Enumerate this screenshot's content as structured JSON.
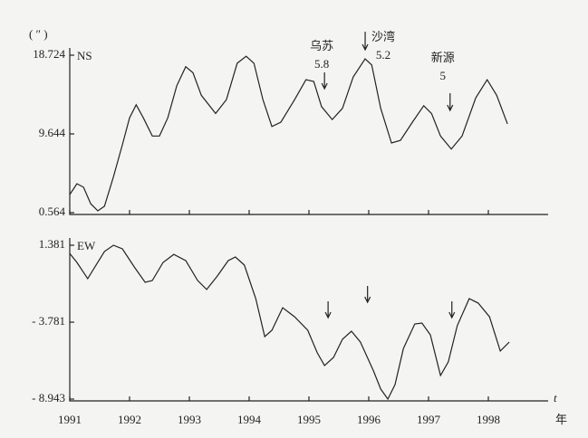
{
  "chart_data": [
    {
      "type": "line",
      "title": "NS",
      "y_unit": "( ″ )",
      "xlim": [
        1991,
        1999
      ],
      "xticks": [
        1991,
        1992,
        1993,
        1994,
        1995,
        1996,
        1997,
        1998
      ],
      "show_xtick_labels": false,
      "ylim": [
        0.564,
        18.724
      ],
      "yticks": [
        0.564,
        9.644,
        18.724
      ],
      "series": [
        {
          "name": "NS",
          "color": "#222222",
          "x": [
            1991.0,
            1991.12,
            1991.23,
            1991.35,
            1991.47,
            1991.58,
            1991.73,
            1991.88,
            1992.0,
            1992.11,
            1992.23,
            1992.38,
            1992.5,
            1992.64,
            1992.79,
            1992.94,
            1993.06,
            1993.2,
            1993.44,
            1993.62,
            1993.8,
            1993.95,
            1994.08,
            1994.23,
            1994.38,
            1994.53,
            1994.76,
            1994.95,
            1995.08,
            1995.21,
            1995.39,
            1995.56,
            1995.74,
            1995.94,
            1996.05,
            1996.2,
            1996.38,
            1996.53,
            1996.73,
            1996.92,
            1997.05,
            1997.2,
            1997.38,
            1997.56,
            1997.79,
            1997.98,
            1998.14,
            1998.32
          ],
          "values": [
            2.65,
            3.9,
            3.5,
            1.6,
            0.77,
            1.3,
            4.7,
            8.4,
            11.5,
            13.0,
            11.5,
            9.4,
            9.4,
            11.5,
            15.2,
            17.4,
            16.7,
            14.1,
            12.0,
            13.6,
            17.8,
            18.6,
            17.8,
            13.6,
            10.5,
            11.0,
            13.6,
            15.9,
            15.7,
            12.8,
            11.3,
            12.6,
            16.2,
            18.3,
            17.6,
            12.6,
            8.6,
            8.9,
            11.0,
            12.9,
            12.0,
            9.4,
            7.9,
            9.4,
            13.8,
            15.9,
            14.1,
            10.8
          ]
        }
      ],
      "annotations": [
        {
          "label": "乌苏",
          "magnitude": 5.8,
          "x": 1995.26
        },
        {
          "label": "沙湾",
          "magnitude": 5.2,
          "x": 1995.94
        },
        {
          "label": "新源",
          "magnitude": 5.0,
          "x": 1997.36
        }
      ]
    },
    {
      "type": "line",
      "title": "EW",
      "xlabel": "年",
      "x_symbol": "t",
      "xlim": [
        1991,
        1999
      ],
      "xticks": [
        1991,
        1992,
        1993,
        1994,
        1995,
        1996,
        1997,
        1998
      ],
      "show_xtick_labels": true,
      "ylim": [
        -8.943,
        1.381
      ],
      "yticks": [
        {
          "value": -8.943,
          "label": "- 8.943"
        },
        {
          "value": -3.781,
          "label": "- 3.781"
        },
        1.381
      ],
      "series": [
        {
          "name": "EW",
          "color": "#222222",
          "x": [
            1991.0,
            1991.12,
            1991.3,
            1991.42,
            1991.58,
            1991.73,
            1991.88,
            1992.08,
            1992.26,
            1992.38,
            1992.56,
            1992.74,
            1992.94,
            1993.14,
            1993.29,
            1993.47,
            1993.65,
            1993.77,
            1993.92,
            1994.11,
            1994.26,
            1994.38,
            1994.56,
            1994.76,
            1994.98,
            1995.14,
            1995.26,
            1995.41,
            1995.56,
            1995.71,
            1995.86,
            1996.08,
            1996.2,
            1996.32,
            1996.44,
            1996.58,
            1996.77,
            1996.89,
            1997.03,
            1997.2,
            1997.33,
            1997.48,
            1997.68,
            1997.83,
            1998.02,
            1998.2,
            1998.35
          ],
          "values": [
            0.83,
            0.23,
            -0.86,
            -0.08,
            0.96,
            1.38,
            1.14,
            -0.08,
            -1.11,
            -0.99,
            0.23,
            0.77,
            0.35,
            -0.99,
            -1.59,
            -0.68,
            0.35,
            0.59,
            0.05,
            -2.2,
            -4.75,
            -4.33,
            -2.81,
            -3.42,
            -4.33,
            -5.84,
            -6.69,
            -6.15,
            -4.93,
            -4.39,
            -5.12,
            -7.06,
            -8.27,
            -8.94,
            -7.97,
            -5.54,
            -3.9,
            -3.84,
            -4.63,
            -7.36,
            -6.45,
            -4.02,
            -2.2,
            -2.5,
            -3.42,
            -5.72,
            -5.12
          ]
        }
      ],
      "arrows": [
        1995.32,
        1995.98,
        1997.39
      ]
    }
  ]
}
